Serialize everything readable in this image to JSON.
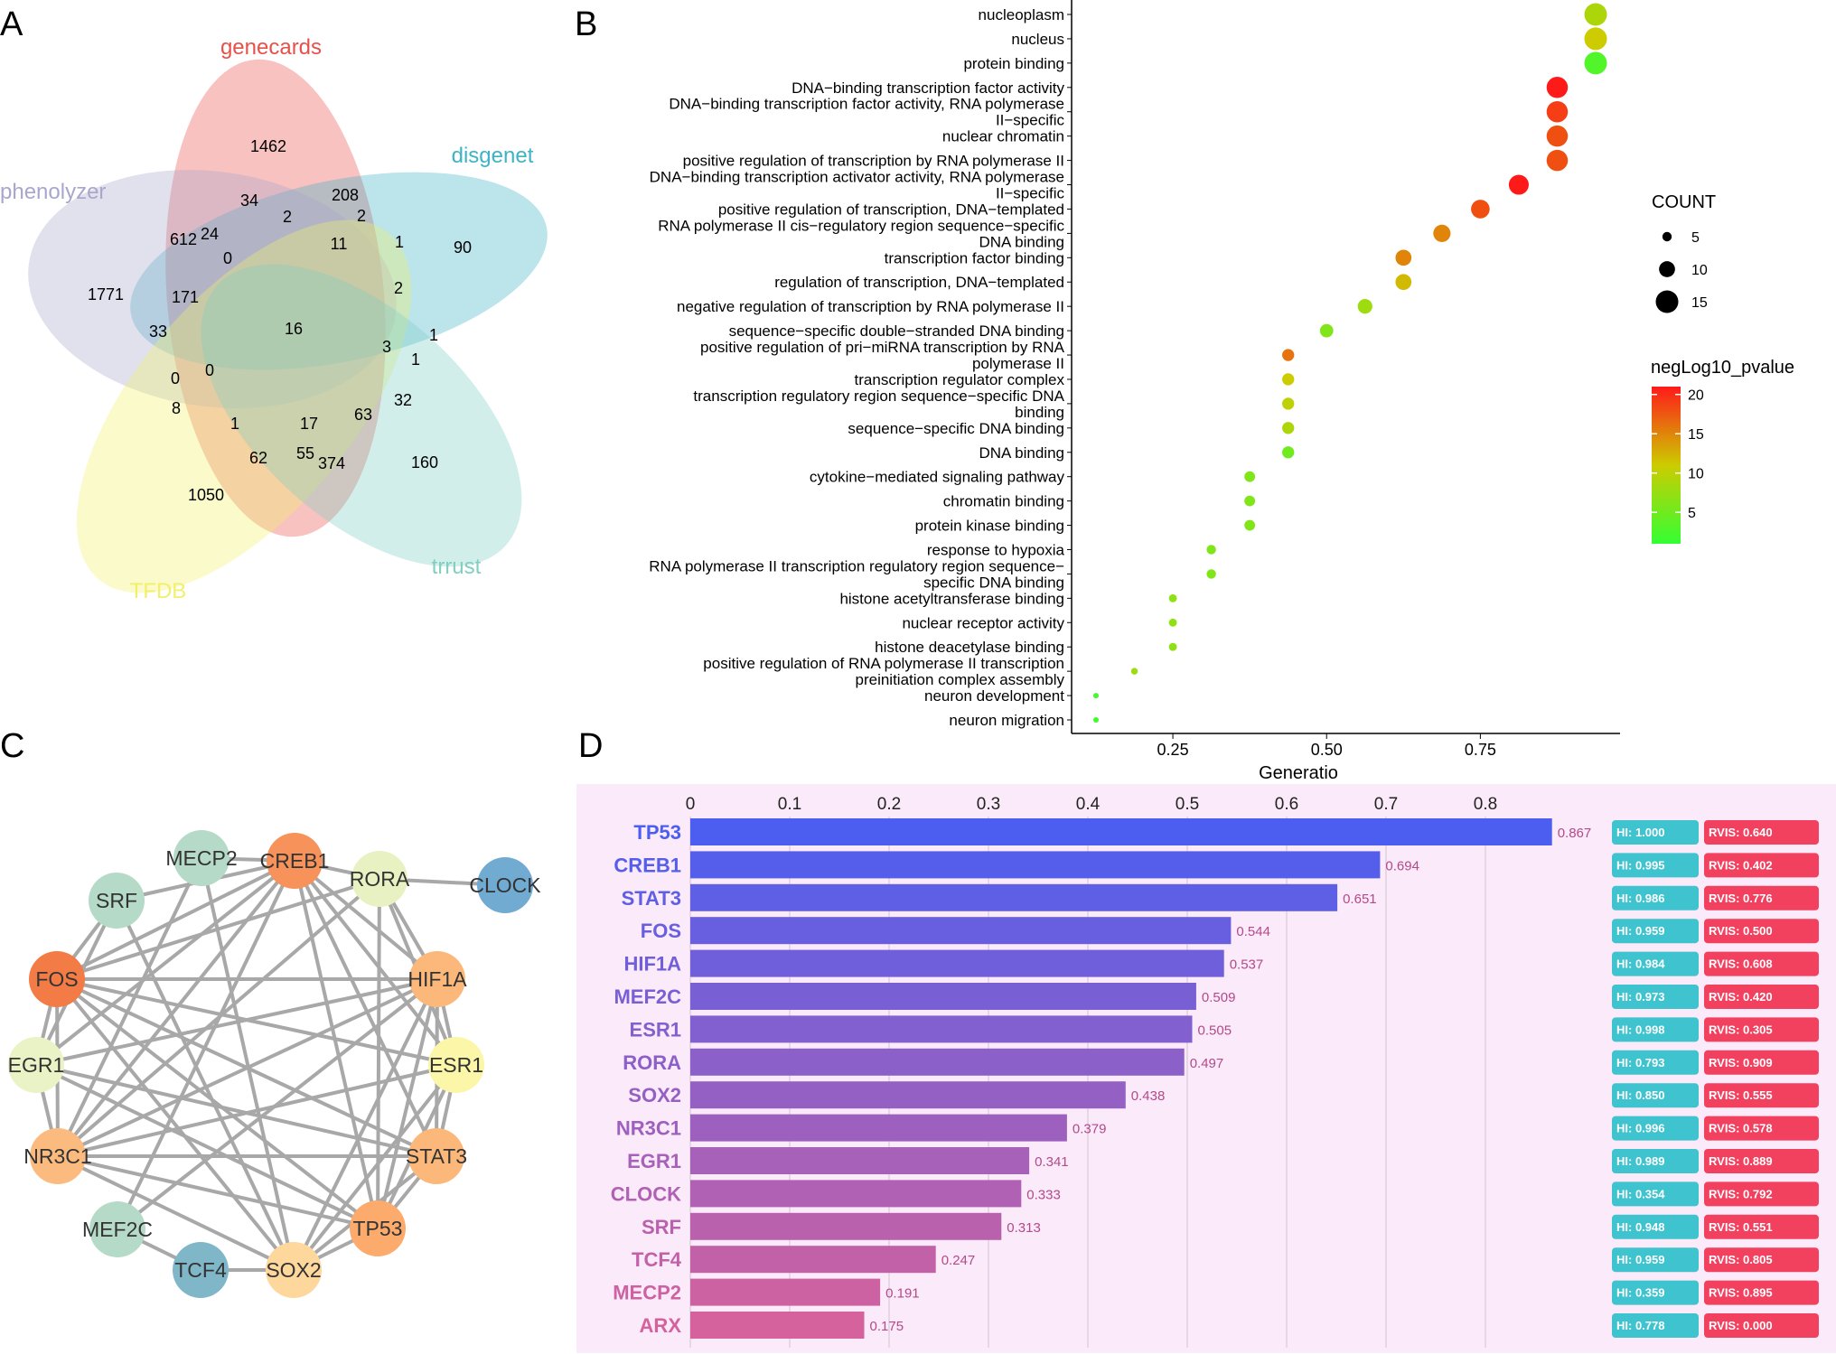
{
  "panels": {
    "A": {
      "letter": "A"
    },
    "B": {
      "letter": "B"
    },
    "C": {
      "letter": "C"
    },
    "D": {
      "letter": "D"
    }
  },
  "venn": {
    "sets": [
      {
        "name": "genecards",
        "color": "#e8504a"
      },
      {
        "name": "disgenet",
        "color": "#3fb3c6"
      },
      {
        "name": "phenolyzer",
        "color": "#a9a6cc"
      },
      {
        "name": "TFDB",
        "color": "#f2f06a"
      },
      {
        "name": "trrust",
        "color": "#7fcfc2"
      }
    ],
    "counts": [
      "1462",
      "208",
      "34",
      "2",
      "2",
      "612",
      "24",
      "0",
      "11",
      "1",
      "90",
      "1771",
      "171",
      "2",
      "16",
      "33",
      "3",
      "1",
      "1",
      "0",
      "0",
      "32",
      "8",
      "63",
      "1",
      "17",
      "62",
      "55",
      "374",
      "160",
      "1050"
    ]
  },
  "chart_data": [
    {
      "type": "scatter",
      "xlabel": "Generatio",
      "xticks": [
        "0.25",
        "0.50",
        "0.75"
      ],
      "xlim": [
        0.1,
        0.95
      ],
      "categories": [
        "nucleoplasm",
        "nucleus",
        "protein binding",
        "DNA−binding transcription factor activity",
        "DNA−binding transcription factor activity, RNA polymerase II−specific",
        "nuclear chromatin",
        "positive regulation of transcription by RNA polymerase II",
        "DNA−binding transcription activator activity, RNA polymerase II−specific",
        "positive regulation of transcription, DNA−templated",
        "RNA polymerase II cis−regulatory region sequence−specific DNA binding",
        "transcription factor binding",
        "regulation of transcription, DNA−templated",
        "negative regulation of transcription by RNA polymerase II",
        "sequence−specific double−stranded DNA binding",
        "positive regulation of pri−miRNA transcription by RNA polymerase II",
        "transcription regulator complex",
        "transcription regulatory region sequence−specific DNA binding",
        "sequence−specific DNA binding",
        "DNA binding",
        "cytokine−mediated signaling pathway",
        "chromatin binding",
        "protein kinase binding",
        "response to hypoxia",
        "RNA polymerase II transcription regulatory region sequence−specific DNA binding",
        "histone acetyltransferase binding",
        "nuclear receptor activity",
        "histone deacetylase binding",
        "positive regulation of RNA polymerase II transcription preinitiation complex assembly",
        "neuron development",
        "neuron migration"
      ],
      "label_lines": [
        [
          "nucleoplasm"
        ],
        [
          "nucleus"
        ],
        [
          "protein binding"
        ],
        [
          "DNA−binding transcription factor activity"
        ],
        [
          "DNA−binding transcription factor activity, RNA polymerase",
          "II−specific"
        ],
        [
          "nuclear chromatin"
        ],
        [
          "positive regulation of transcription by RNA polymerase II"
        ],
        [
          "DNA−binding transcription activator activity, RNA polymerase",
          "II−specific"
        ],
        [
          "positive regulation of transcription, DNA−templated"
        ],
        [
          "RNA polymerase II cis−regulatory region sequence−specific",
          "DNA binding"
        ],
        [
          "transcription factor binding"
        ],
        [
          "regulation of transcription, DNA−templated"
        ],
        [
          "negative regulation of transcription by RNA polymerase II"
        ],
        [
          "sequence−specific double−stranded DNA binding"
        ],
        [
          "positive regulation of pri−miRNA transcription by RNA",
          "polymerase II"
        ],
        [
          "transcription regulator complex"
        ],
        [
          "transcription regulatory region sequence−specific DNA",
          "binding"
        ],
        [
          "sequence−specific DNA binding"
        ],
        [
          "DNA binding"
        ],
        [
          "cytokine−mediated signaling pathway"
        ],
        [
          "chromatin binding"
        ],
        [
          "protein kinase binding"
        ],
        [
          "response to hypoxia"
        ],
        [
          "RNA polymerase II transcription regulatory region sequence−",
          "specific DNA binding"
        ],
        [
          "histone acetyltransferase binding"
        ],
        [
          "nuclear receptor activity"
        ],
        [
          "histone deacetylase binding"
        ],
        [
          "positive regulation of RNA polymerase II transcription",
          "preinitiation complex assembly"
        ],
        [
          "neuron development"
        ],
        [
          "neuron migration"
        ]
      ],
      "generatio": [
        0.9375,
        0.9375,
        0.9375,
        0.875,
        0.875,
        0.875,
        0.875,
        0.8125,
        0.75,
        0.6875,
        0.625,
        0.625,
        0.5625,
        0.5,
        0.4375,
        0.4375,
        0.4375,
        0.4375,
        0.4375,
        0.375,
        0.375,
        0.375,
        0.3125,
        0.3125,
        0.25,
        0.25,
        0.25,
        0.1875,
        0.125,
        0.125
      ],
      "count": [
        15,
        15,
        15,
        14,
        14,
        14,
        14,
        13,
        12,
        11,
        10,
        10,
        9,
        8,
        7,
        7,
        7,
        7,
        7,
        6,
        6,
        6,
        5,
        5,
        4,
        4,
        4,
        3,
        2,
        2
      ],
      "neglog10_pvalue": [
        9,
        11,
        3,
        21,
        19,
        18,
        18,
        21,
        18,
        15,
        15,
        12,
        8,
        6,
        16,
        11,
        10,
        9,
        5,
        6,
        6,
        6,
        6,
        6,
        7,
        7,
        7,
        8,
        2,
        2
      ],
      "legend_size": {
        "title": "COUNT",
        "values": [
          5,
          10,
          15
        ]
      },
      "legend_color": {
        "title": "negLog10_pvalue",
        "ticks": [
          5,
          10,
          15,
          20
        ],
        "range": [
          1,
          21
        ],
        "low_color": "#33ff33",
        "mid_color": "#cccc00",
        "high_color": "#ff1a1a"
      }
    },
    {
      "type": "bar",
      "xticks": [
        "0",
        "0.1",
        "0.2",
        "0.3",
        "0.4",
        "0.5",
        "0.6",
        "0.7",
        "0.8"
      ],
      "xlim": [
        0,
        0.9
      ],
      "categories": [
        "TP53",
        "CREB1",
        "STAT3",
        "FOS",
        "HIF1A",
        "MEF2C",
        "ESR1",
        "RORA",
        "SOX2",
        "NR3C1",
        "EGR1",
        "CLOCK",
        "SRF",
        "TCF4",
        "MECP2",
        "ARX"
      ],
      "values": [
        0.867,
        0.694,
        0.651,
        0.544,
        0.537,
        0.509,
        0.505,
        0.497,
        0.438,
        0.379,
        0.341,
        0.333,
        0.313,
        0.247,
        0.191,
        0.175
      ],
      "value_labels": [
        "0.867",
        "0.694",
        "0.651",
        "0.544",
        "0.537",
        "0.509",
        "0.505",
        "0.497",
        "0.438",
        "0.379",
        "0.341",
        "0.333",
        "0.313",
        "0.247",
        "0.191",
        "0.175"
      ],
      "hi": [
        "HI: 1.000",
        "HI: 0.995",
        "HI: 0.986",
        "HI: 0.959",
        "HI: 0.984",
        "HI: 0.973",
        "HI: 0.998",
        "HI: 0.793",
        "HI: 0.850",
        "HI: 0.996",
        "HI: 0.989",
        "HI: 0.354",
        "HI: 0.948",
        "HI: 0.959",
        "HI: 0.359",
        "HI: 0.778"
      ],
      "rvis": [
        "RVIS: 0.640",
        "RVIS: 0.402",
        "RVIS: 0.776",
        "RVIS: 0.500",
        "RVIS: 0.608",
        "RVIS: 0.420",
        "RVIS: 0.305",
        "RVIS: 0.909",
        "RVIS: 0.555",
        "RVIS: 0.578",
        "RVIS: 0.889",
        "RVIS: 0.792",
        "RVIS: 0.551",
        "RVIS: 0.805",
        "RVIS: 0.895",
        "RVIS: 0.000"
      ],
      "colors": {
        "top": "#4b5ef0",
        "bottom": "#d6629d",
        "background": "#fbeaf9",
        "hi_badge": "#3fc3cf",
        "rvis_badge": "#f2405f"
      }
    }
  ],
  "network": {
    "nodes": [
      {
        "id": "MECP2",
        "color": "#b5dac8"
      },
      {
        "id": "CREB1",
        "color": "#f6925a"
      },
      {
        "id": "RORA",
        "color": "#e8f1c2"
      },
      {
        "id": "CLOCK",
        "color": "#71abd2"
      },
      {
        "id": "SRF",
        "color": "#b5dac8"
      },
      {
        "id": "FOS",
        "color": "#f37b45"
      },
      {
        "id": "HIF1A",
        "color": "#fbb87a"
      },
      {
        "id": "EGR1",
        "color": "#eaf3c6"
      },
      {
        "id": "ESR1",
        "color": "#fbf6a8"
      },
      {
        "id": "NR3C1",
        "color": "#fbbb7e"
      },
      {
        "id": "STAT3",
        "color": "#fbb87a"
      },
      {
        "id": "MEF2C",
        "color": "#b5dac8"
      },
      {
        "id": "TP53",
        "color": "#fcab6c"
      },
      {
        "id": "TCF4",
        "color": "#7fb7c9"
      },
      {
        "id": "SOX2",
        "color": "#fdd79b"
      }
    ],
    "edges": [
      [
        "MECP2",
        "CREB1"
      ],
      [
        "MECP2",
        "SOX2"
      ],
      [
        "MECP2",
        "NR3C1"
      ],
      [
        "CREB1",
        "RORA"
      ],
      [
        "CREB1",
        "FOS"
      ],
      [
        "CREB1",
        "HIF1A"
      ],
      [
        "CREB1",
        "ESR1"
      ],
      [
        "CREB1",
        "STAT3"
      ],
      [
        "CREB1",
        "TP53"
      ],
      [
        "CREB1",
        "NR3C1"
      ],
      [
        "CREB1",
        "EGR1"
      ],
      [
        "CREB1",
        "SRF"
      ],
      [
        "CREB1",
        "MEF2C"
      ],
      [
        "RORA",
        "CLOCK"
      ],
      [
        "RORA",
        "HIF1A"
      ],
      [
        "RORA",
        "FOS"
      ],
      [
        "RORA",
        "ESR1"
      ],
      [
        "RORA",
        "TP53"
      ],
      [
        "RORA",
        "NR3C1"
      ],
      [
        "SRF",
        "FOS"
      ],
      [
        "SRF",
        "EGR1"
      ],
      [
        "SRF",
        "SOX2"
      ],
      [
        "FOS",
        "HIF1A"
      ],
      [
        "FOS",
        "ESR1"
      ],
      [
        "FOS",
        "STAT3"
      ],
      [
        "FOS",
        "TP53"
      ],
      [
        "FOS",
        "NR3C1"
      ],
      [
        "FOS",
        "EGR1"
      ],
      [
        "FOS",
        "SOX2"
      ],
      [
        "HIF1A",
        "ESR1"
      ],
      [
        "HIF1A",
        "STAT3"
      ],
      [
        "HIF1A",
        "TP53"
      ],
      [
        "HIF1A",
        "NR3C1"
      ],
      [
        "HIF1A",
        "EGR1"
      ],
      [
        "HIF1A",
        "SOX2"
      ],
      [
        "EGR1",
        "NR3C1"
      ],
      [
        "EGR1",
        "TP53"
      ],
      [
        "EGR1",
        "STAT3"
      ],
      [
        "ESR1",
        "STAT3"
      ],
      [
        "ESR1",
        "TP53"
      ],
      [
        "ESR1",
        "NR3C1"
      ],
      [
        "ESR1",
        "SOX2"
      ],
      [
        "NR3C1",
        "STAT3"
      ],
      [
        "NR3C1",
        "TP53"
      ],
      [
        "NR3C1",
        "SOX2"
      ],
      [
        "STAT3",
        "TP53"
      ],
      [
        "STAT3",
        "SOX2"
      ],
      [
        "MEF2C",
        "TCF4"
      ],
      [
        "MEF2C",
        "HIF1A"
      ],
      [
        "TCF4",
        "SOX2"
      ],
      [
        "SOX2",
        "TP53"
      ]
    ]
  }
}
